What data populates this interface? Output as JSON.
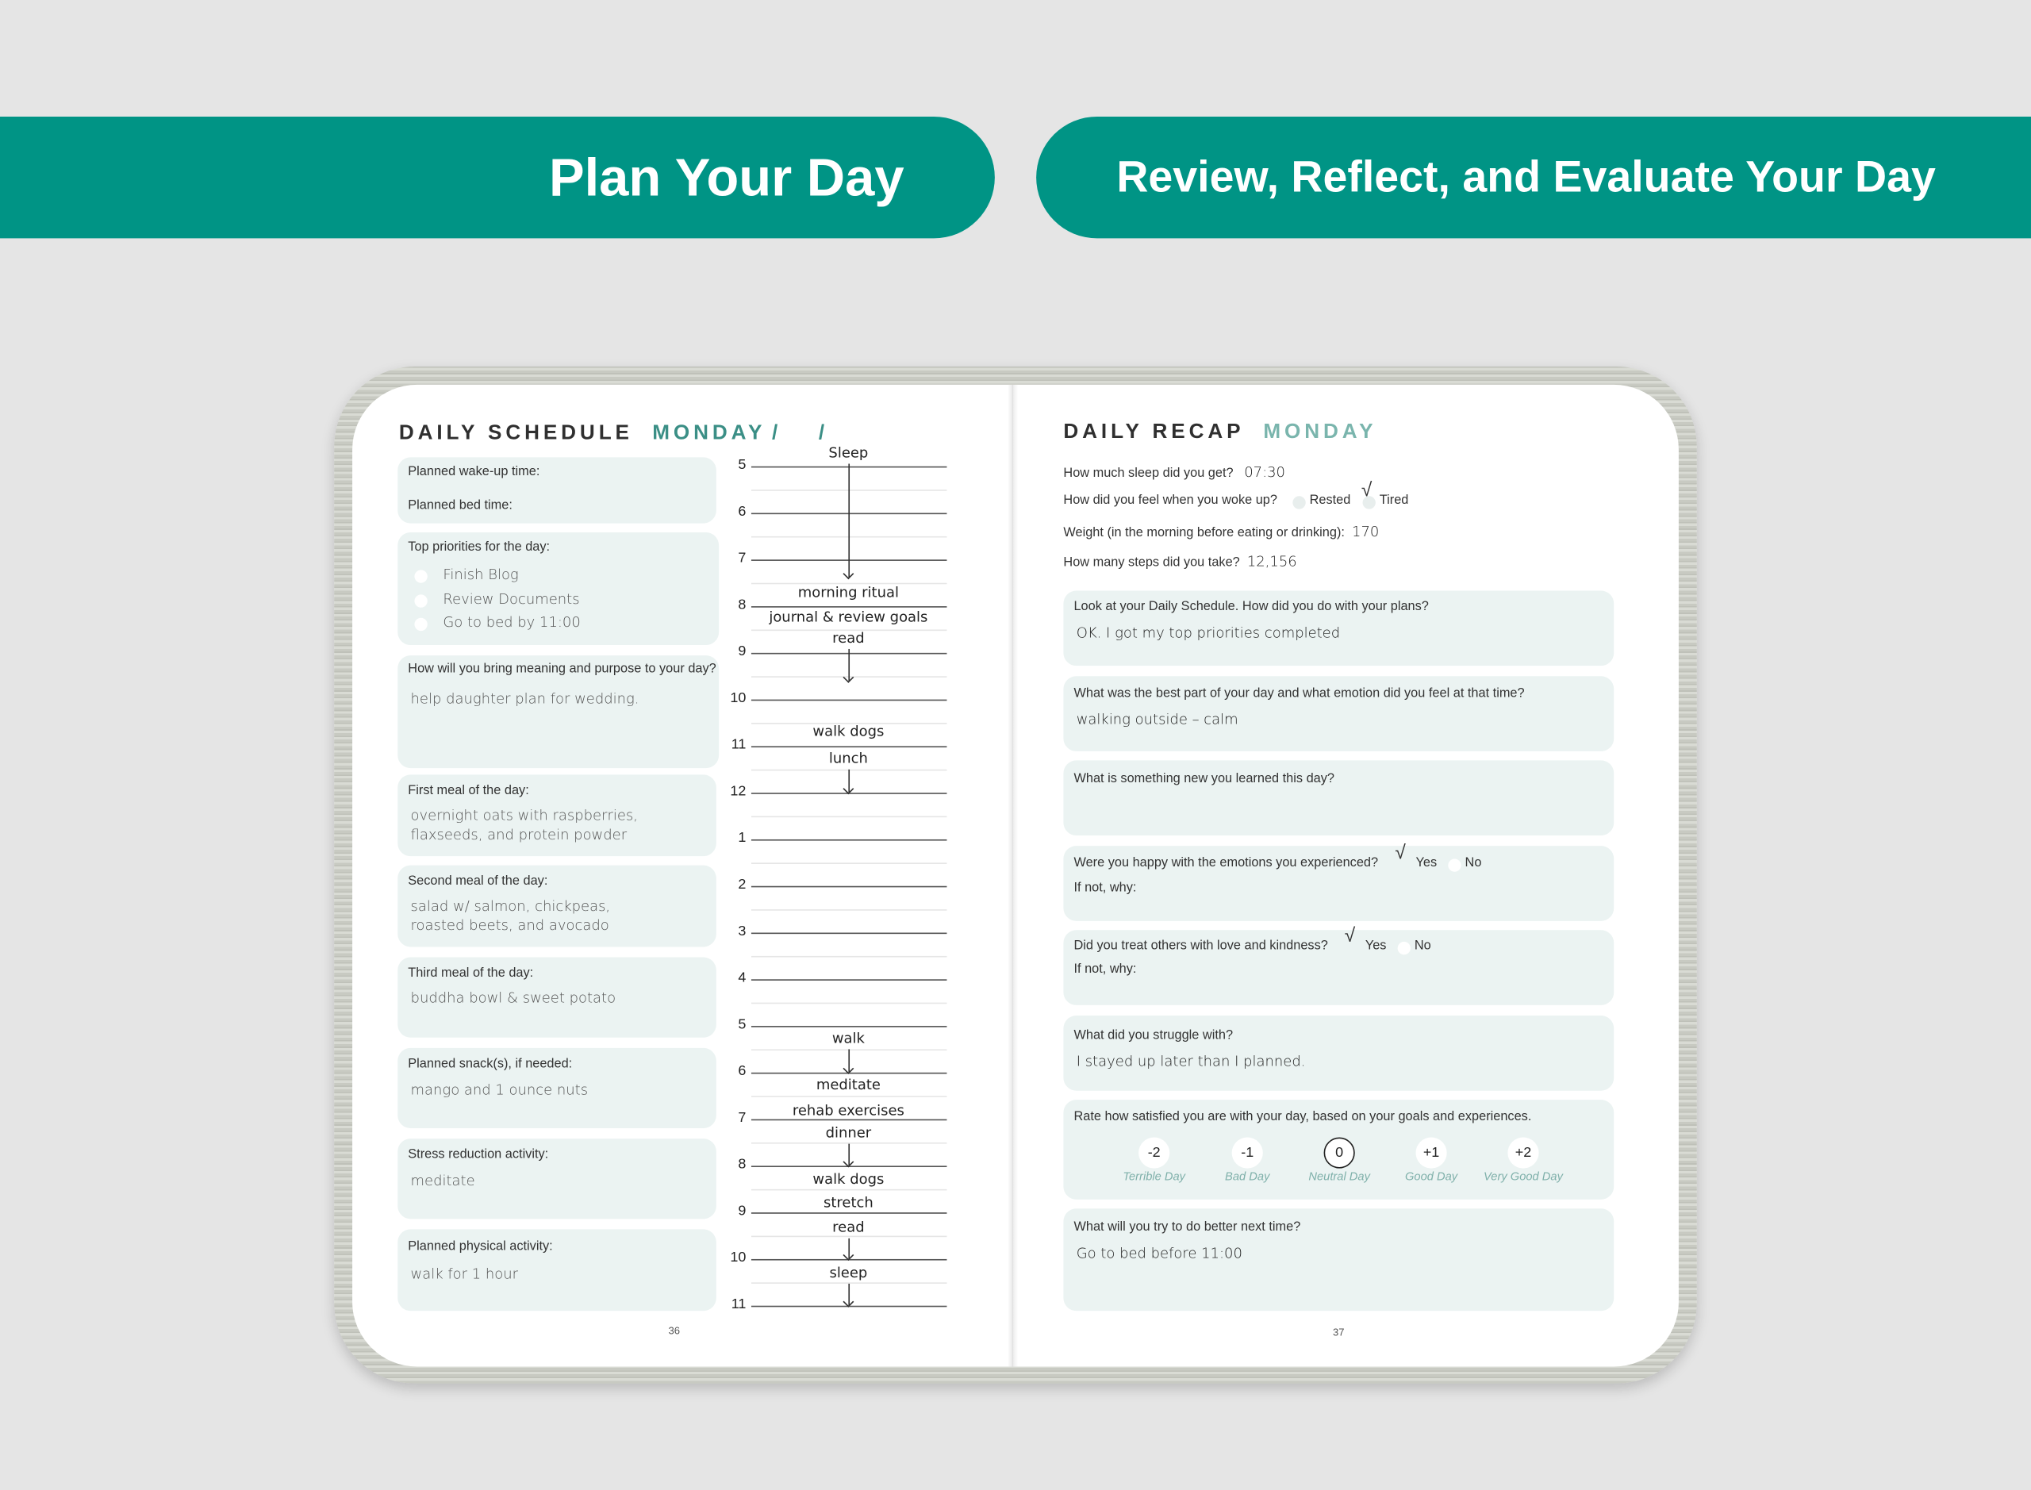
{
  "banners": {
    "left": "Plan Your Day",
    "right": "Review, Reflect, and Evaluate Your Day"
  },
  "colors": {
    "banner": "#009485",
    "accent": "#3b8f86",
    "box": "#ebf3f2"
  },
  "left": {
    "title": "DAILY SCHEDULE",
    "day": "MONDAY",
    "date_slashes": [
      "/",
      "/"
    ],
    "wake_label": "Planned wake-up time:",
    "bed_label": "Planned bed time:",
    "priorities_label": "Top priorities for the day:",
    "priorities": [
      "Finish Blog",
      "Review Documents",
      "Go to bed by 11:00"
    ],
    "meaning_label": "How will you bring meaning and purpose to your day?",
    "meaning_answer": "help daughter plan for wedding.",
    "meal1_label": "First meal of the day:",
    "meal1_answer": [
      "overnight oats with raspberries,",
      "flaxseeds, and protein powder"
    ],
    "meal2_label": "Second meal of the day:",
    "meal2_answer": [
      "salad w/ salmon, chickpeas,",
      "roasted beets, and avocado"
    ],
    "meal3_label": "Third meal of the day:",
    "meal3_answer": "buddha bowl & sweet potato",
    "snack_label": "Planned snack(s), if needed:",
    "snack_answer": "mango and 1 ounce nuts",
    "stress_label": "Stress reduction activity:",
    "stress_answer": "meditate",
    "physical_label": "Planned physical activity:",
    "physical_answer": "walk for 1 hour",
    "page_number": "36",
    "schedule_hours": [
      "5",
      "6",
      "7",
      "8",
      "9",
      "10",
      "11",
      "12",
      "1",
      "2",
      "3",
      "4",
      "5",
      "6",
      "7",
      "8",
      "9",
      "10",
      "11"
    ],
    "schedule_entries": [
      "Sleep",
      "morning ritual",
      "journal & review goals",
      "read",
      "walk dogs",
      "lunch",
      "walk",
      "meditate",
      "rehab exercises",
      "dinner",
      "walk dogs",
      "stretch",
      "read",
      "sleep"
    ]
  },
  "right": {
    "title": "DAILY RECAP",
    "day": "MONDAY",
    "sleep_q": "How much sleep did you get?",
    "sleep_a": "07:30",
    "woke_q": "How did you feel when you woke up?",
    "woke_opt1": "Rested",
    "woke_opt2": "Tired",
    "woke_selected": "Tired",
    "weight_q": "Weight (in the morning before eating or drinking):",
    "weight_a": "170",
    "steps_q": "How many steps did you take?",
    "steps_a": "12,156",
    "plans_q": "Look at your Daily Schedule. How did you do with your plans?",
    "plans_a": "OK. I got my top priorities completed",
    "best_q": "What was the best part of your day and what emotion did you feel at that time?",
    "best_a": "walking outside – calm",
    "learned_q": "What is something new you learned this day?",
    "happy_q": "Were you happy with the emotions you experienced?",
    "happy_selected": "Yes",
    "kind_q": "Did you treat others with love and kindness?",
    "kind_selected": "Yes",
    "yes": "Yes",
    "no": "No",
    "ifnot": "If not, why:",
    "check": "√",
    "struggle_q": "What did you struggle with?",
    "struggle_a": "I stayed up later than I planned.",
    "rate_q": "Rate how satisfied you are with your day, based on your goals and experiences.",
    "rating_options": [
      {
        "value": "-2",
        "label": "Terrible Day"
      },
      {
        "value": "-1",
        "label": "Bad Day"
      },
      {
        "value": "0",
        "label": "Neutral Day"
      },
      {
        "value": "+1",
        "label": "Good Day"
      },
      {
        "value": "+2",
        "label": "Very Good Day"
      }
    ],
    "rating_selected": "0",
    "better_q": "What will you try to do better next time?",
    "better_a": "Go to bed before 11:00",
    "page_number": "37"
  }
}
